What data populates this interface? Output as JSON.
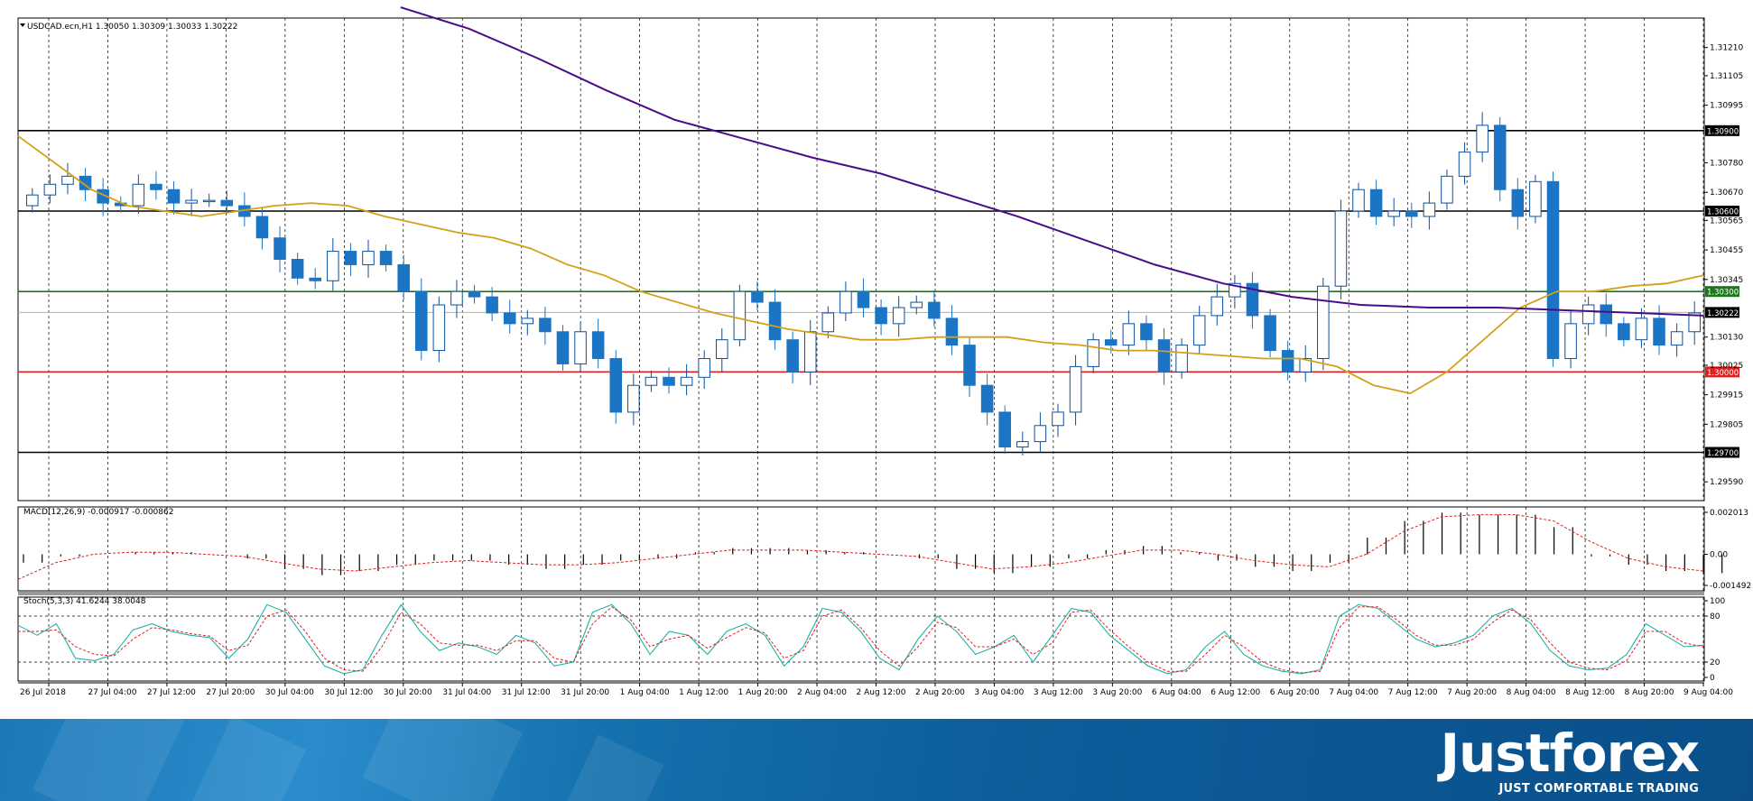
{
  "chart_data": {
    "type": "candlestick",
    "symbol_line": "USDCAD.ecn,H1  1.30050 1.30309 1.30033 1.30222",
    "price_axis": {
      "range": [
        1.2952,
        1.3132
      ],
      "ticks": [
        "1.31210",
        "1.31105",
        "1.30995",
        "1.30780",
        "1.30670",
        "1.30565",
        "1.30455",
        "1.30345",
        "1.30130",
        "1.30025",
        "1.29915",
        "1.29805",
        "1.29590"
      ]
    },
    "levels": [
      {
        "label": "1.30900",
        "value": 1.309,
        "color": "#000000"
      },
      {
        "label": "1.30600",
        "value": 1.306,
        "color": "#000000"
      },
      {
        "label": "1.30300",
        "value": 1.303,
        "color": "#1a7a1a"
      },
      {
        "label": "1.30000",
        "value": 1.3,
        "color": "#e02020"
      },
      {
        "label": "1.29700",
        "value": 1.297,
        "color": "#000000"
      }
    ],
    "current_price": {
      "label": "1.30222",
      "value": 1.30222
    },
    "time_labels": [
      "26 Jul 2018",
      "27 Jul 04:00",
      "27 Jul 12:00",
      "27 Jul 20:00",
      "30 Jul 04:00",
      "30 Jul 12:00",
      "30 Jul 20:00",
      "31 Jul 04:00",
      "31 Jul 12:00",
      "31 Jul 20:00",
      "1 Aug 04:00",
      "1 Aug 12:00",
      "1 Aug 20:00",
      "2 Aug 04:00",
      "2 Aug 12:00",
      "2 Aug 20:00",
      "3 Aug 04:00",
      "3 Aug 12:00",
      "3 Aug 20:00",
      "6 Aug 04:00",
      "6 Aug 12:00",
      "6 Aug 20:00",
      "7 Aug 04:00",
      "7 Aug 12:00",
      "7 Aug 20:00",
      "8 Aug 04:00",
      "8 Aug 12:00",
      "8 Aug 20:00",
      "9 Aug 04:00"
    ],
    "closes": [
      1.3066,
      1.307,
      1.3073,
      1.3068,
      1.3063,
      1.3062,
      1.307,
      1.3068,
      1.3063,
      1.3064,
      1.3064,
      1.3062,
      1.3058,
      1.305,
      1.3042,
      1.3035,
      1.3034,
      1.3045,
      1.304,
      1.3045,
      1.304,
      1.303,
      1.3008,
      1.3025,
      1.303,
      1.3028,
      1.3022,
      1.3018,
      1.302,
      1.3015,
      1.3003,
      1.3015,
      1.3005,
      1.2985,
      1.2995,
      1.2998,
      1.2995,
      1.2998,
      1.3005,
      1.3012,
      1.303,
      1.3026,
      1.3012,
      1.3,
      1.3015,
      1.3022,
      1.303,
      1.3024,
      1.3018,
      1.3024,
      1.3026,
      1.302,
      1.301,
      1.2995,
      1.2985,
      1.2972,
      1.2974,
      1.298,
      1.2985,
      1.3002,
      1.3012,
      1.301,
      1.3018,
      1.3012,
      1.3,
      1.301,
      1.3021,
      1.3028,
      1.3033,
      1.3021,
      1.3008,
      1.3,
      1.3005,
      1.3032,
      1.306,
      1.3068,
      1.3058,
      1.306,
      1.3058,
      1.3063,
      1.3073,
      1.3082,
      1.3092,
      1.3068,
      1.3058,
      1.3071,
      1.3005,
      1.3018,
      1.3025,
      1.3018,
      1.3012,
      1.302,
      1.301,
      1.3015,
      1.3022
    ],
    "ma_fast": {
      "color": "#d4a017",
      "values": [
        1.3088,
        1.3078,
        1.3068,
        1.3062,
        1.306,
        1.3058,
        1.306,
        1.3062,
        1.3063,
        1.3062,
        1.3058,
        1.3055,
        1.3052,
        1.305,
        1.3046,
        1.304,
        1.3036,
        1.303,
        1.3026,
        1.3022,
        1.3019,
        1.3016,
        1.3014,
        1.3012,
        1.3012,
        1.3013,
        1.3013,
        1.3013,
        1.3011,
        1.301,
        1.3008,
        1.3008,
        1.3007,
        1.3006,
        1.3005,
        1.3005,
        1.3002,
        1.2995,
        1.2992,
        1.3,
        1.3012,
        1.3024,
        1.303,
        1.303,
        1.3032,
        1.3033,
        1.3036
      ]
    },
    "ma_slow": {
      "color": "#4b0b8a",
      "start_fraction": 0.227,
      "values": [
        1.3136,
        1.3128,
        1.3117,
        1.3105,
        1.3094,
        1.3087,
        1.308,
        1.3074,
        1.3066,
        1.3058,
        1.3049,
        1.304,
        1.3033,
        1.3028,
        1.3025,
        1.3024,
        1.3024,
        1.3023,
        1.3022,
        1.3021
      ]
    },
    "macd": {
      "label": "MACD(12,26,9) -0.000917 -0.000862",
      "ticks": [
        "0.002013",
        "0.00",
        "-0.001492"
      ],
      "range": [
        -0.001492,
        0.002013
      ],
      "histogram": [
        -0.0004,
        -0.0001,
        0.0,
        0.0001,
        0.0001,
        0.0,
        -0.0002,
        -0.0007,
        -0.001,
        -0.0008,
        -0.0005,
        -0.0003,
        -0.0003,
        -0.0005,
        -0.0007,
        -0.0005,
        -0.0003,
        -0.0002,
        0.0001,
        0.0003,
        0.0003,
        0.0002,
        0.0001,
        0.0,
        -0.0002,
        -0.0007,
        -0.0009,
        -0.0006,
        -0.0002,
        0.0002,
        0.0004,
        0.0001,
        -0.0003,
        -0.0006,
        -0.0008,
        -0.0004,
        0.0008,
        0.0016,
        0.002,
        0.0019,
        0.0019,
        0.0013,
        -0.0001,
        -0.0005,
        -0.0008,
        -0.0009
      ],
      "signal": [
        -0.0012,
        -0.0004,
        0.0,
        0.0001,
        0.0001,
        0.0,
        -0.0001,
        -0.0004,
        -0.0007,
        -0.0008,
        -0.0006,
        -0.0004,
        -0.0003,
        -0.0004,
        -0.0005,
        -0.0005,
        -0.0004,
        -0.0002,
        0.0,
        0.0002,
        0.0002,
        0.0002,
        0.0001,
        0.0,
        -0.0001,
        -0.0004,
        -0.0007,
        -0.0006,
        -0.0004,
        -0.0001,
        0.0002,
        0.0002,
        0.0,
        -0.0003,
        -0.0005,
        -0.0006,
        0.0,
        0.0011,
        0.0018,
        0.0019,
        0.0019,
        0.0016,
        0.0006,
        -0.0002,
        -0.0006,
        -0.0008
      ]
    },
    "stoch": {
      "label": "Stoch(5,3,3) 41.6244 38.0048",
      "ticks": [
        "100",
        "80",
        "20",
        "0"
      ],
      "range": [
        0,
        100
      ],
      "main": [
        68,
        55,
        70,
        25,
        22,
        30,
        62,
        70,
        60,
        55,
        52,
        25,
        50,
        95,
        85,
        50,
        15,
        5,
        10,
        55,
        95,
        60,
        35,
        45,
        40,
        30,
        55,
        45,
        15,
        20,
        85,
        95,
        70,
        30,
        60,
        55,
        30,
        60,
        70,
        55,
        15,
        40,
        90,
        85,
        60,
        25,
        10,
        50,
        80,
        60,
        30,
        40,
        55,
        20,
        55,
        90,
        85,
        55,
        35,
        15,
        5,
        10,
        40,
        60,
        30,
        15,
        8,
        5,
        10,
        80,
        95,
        90,
        70,
        50,
        40,
        45,
        55,
        80,
        90,
        70,
        35,
        15,
        10,
        12,
        30,
        70,
        55,
        40,
        42
      ],
      "signal": [
        60,
        60,
        62,
        40,
        30,
        28,
        50,
        65,
        62,
        57,
        54,
        35,
        42,
        80,
        88,
        60,
        25,
        10,
        8,
        40,
        85,
        70,
        45,
        42,
        42,
        35,
        48,
        48,
        25,
        20,
        70,
        92,
        75,
        40,
        50,
        55,
        38,
        52,
        65,
        58,
        25,
        35,
        80,
        88,
        65,
        35,
        15,
        40,
        72,
        65,
        40,
        40,
        50,
        30,
        45,
        85,
        88,
        62,
        40,
        20,
        8,
        8,
        30,
        55,
        40,
        20,
        10,
        6,
        8,
        65,
        92,
        92,
        75,
        55,
        42,
        42,
        50,
        72,
        88,
        75,
        45,
        20,
        12,
        10,
        22,
        60,
        60,
        45,
        40
      ]
    }
  },
  "branding": {
    "logo": "Justforex",
    "tagline": "JUST COMFORTABLE TRADING"
  },
  "colors": {
    "bull": "#0b4f9c",
    "bear": "#1b74c4",
    "grid": "#000000",
    "line_green": "#1a7a1a",
    "line_red": "#e02020"
  }
}
